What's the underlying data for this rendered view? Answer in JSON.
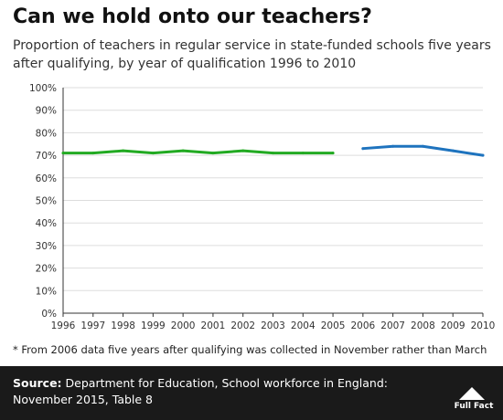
{
  "header": {
    "title": "Can we hold onto our teachers?",
    "subtitle": "Proportion of teachers in regular service in state-funded schools five years after qualifying, by year of qualification 1996 to 2010"
  },
  "footnote": "* From 2006 data five years after qualifying was collected in November rather than March",
  "footer": {
    "source_label": "Source:",
    "source_text": "Department for Education, School workforce in England: November 2015, Table 8",
    "logo_text": "Full Fact"
  },
  "colors": {
    "series_march": "#22aa22",
    "series_november": "#1e73be",
    "grid": "#dddddd",
    "footer_bg": "#1a1a1a"
  },
  "chart_data": {
    "type": "line",
    "title": "Can we hold onto our teachers?",
    "subtitle": "Proportion of teachers in regular service in state-funded schools five years after qualifying, by year of qualification 1996 to 2010",
    "xlabel": "",
    "ylabel": "",
    "x": [
      1996,
      1997,
      1998,
      1999,
      2000,
      2001,
      2002,
      2003,
      2004,
      2005,
      2006,
      2007,
      2008,
      2009,
      2010
    ],
    "ylim": [
      0,
      100
    ],
    "y_ticks": [
      "0%",
      "10%",
      "20%",
      "30%",
      "40%",
      "50%",
      "60%",
      "70%",
      "80%",
      "90%",
      "100%"
    ],
    "y_tick_values": [
      0,
      10,
      20,
      30,
      40,
      50,
      60,
      70,
      80,
      90,
      100
    ],
    "grid": true,
    "legend": "none",
    "series": [
      {
        "color": "#22aa22",
        "x": [
          1996,
          1997,
          1998,
          1999,
          2000,
          2001,
          2002,
          2003,
          2004,
          2005
        ],
        "values": [
          71,
          71,
          72,
          71,
          72,
          71,
          72,
          71,
          71,
          71
        ]
      },
      {
        "color": "#1e73be",
        "x": [
          2006,
          2007,
          2008,
          2009,
          2010
        ],
        "values": [
          73,
          74,
          74,
          72,
          70
        ]
      }
    ]
  }
}
